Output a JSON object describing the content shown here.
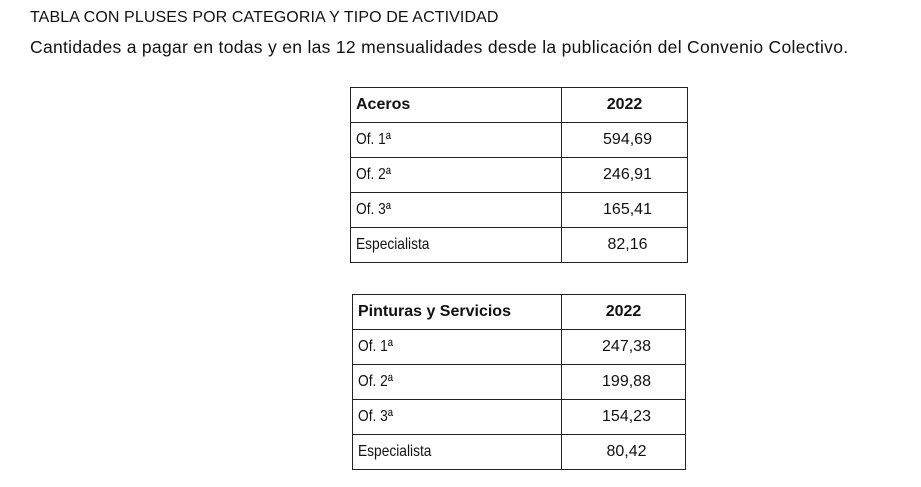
{
  "document": {
    "title": "TABLA CON PLUSES POR CATEGORIA Y TIPO DE ACTIVIDAD",
    "subtitle": "Cantidades a pagar en todas y en las 12 mensualidades desde la publicación del Convenio Colectivo."
  },
  "tables": [
    {
      "header": {
        "category": "Aceros",
        "year": "2022"
      },
      "rows": [
        {
          "category": "Of. 1ª",
          "value": "594,69"
        },
        {
          "category": "Of. 2ª",
          "value": "246,91"
        },
        {
          "category": "Of. 3ª",
          "value": "165,41"
        },
        {
          "category": "Especialista",
          "value": "82,16"
        }
      ]
    },
    {
      "header": {
        "category": "Pinturas y Servicios",
        "year": "2022"
      },
      "rows": [
        {
          "category": "Of. 1ª",
          "value": "247,38"
        },
        {
          "category": "Of. 2ª",
          "value": "199,88"
        },
        {
          "category": "Of. 3ª",
          "value": "154,23"
        },
        {
          "category": "Especialista",
          "value": "80,42"
        }
      ]
    }
  ]
}
